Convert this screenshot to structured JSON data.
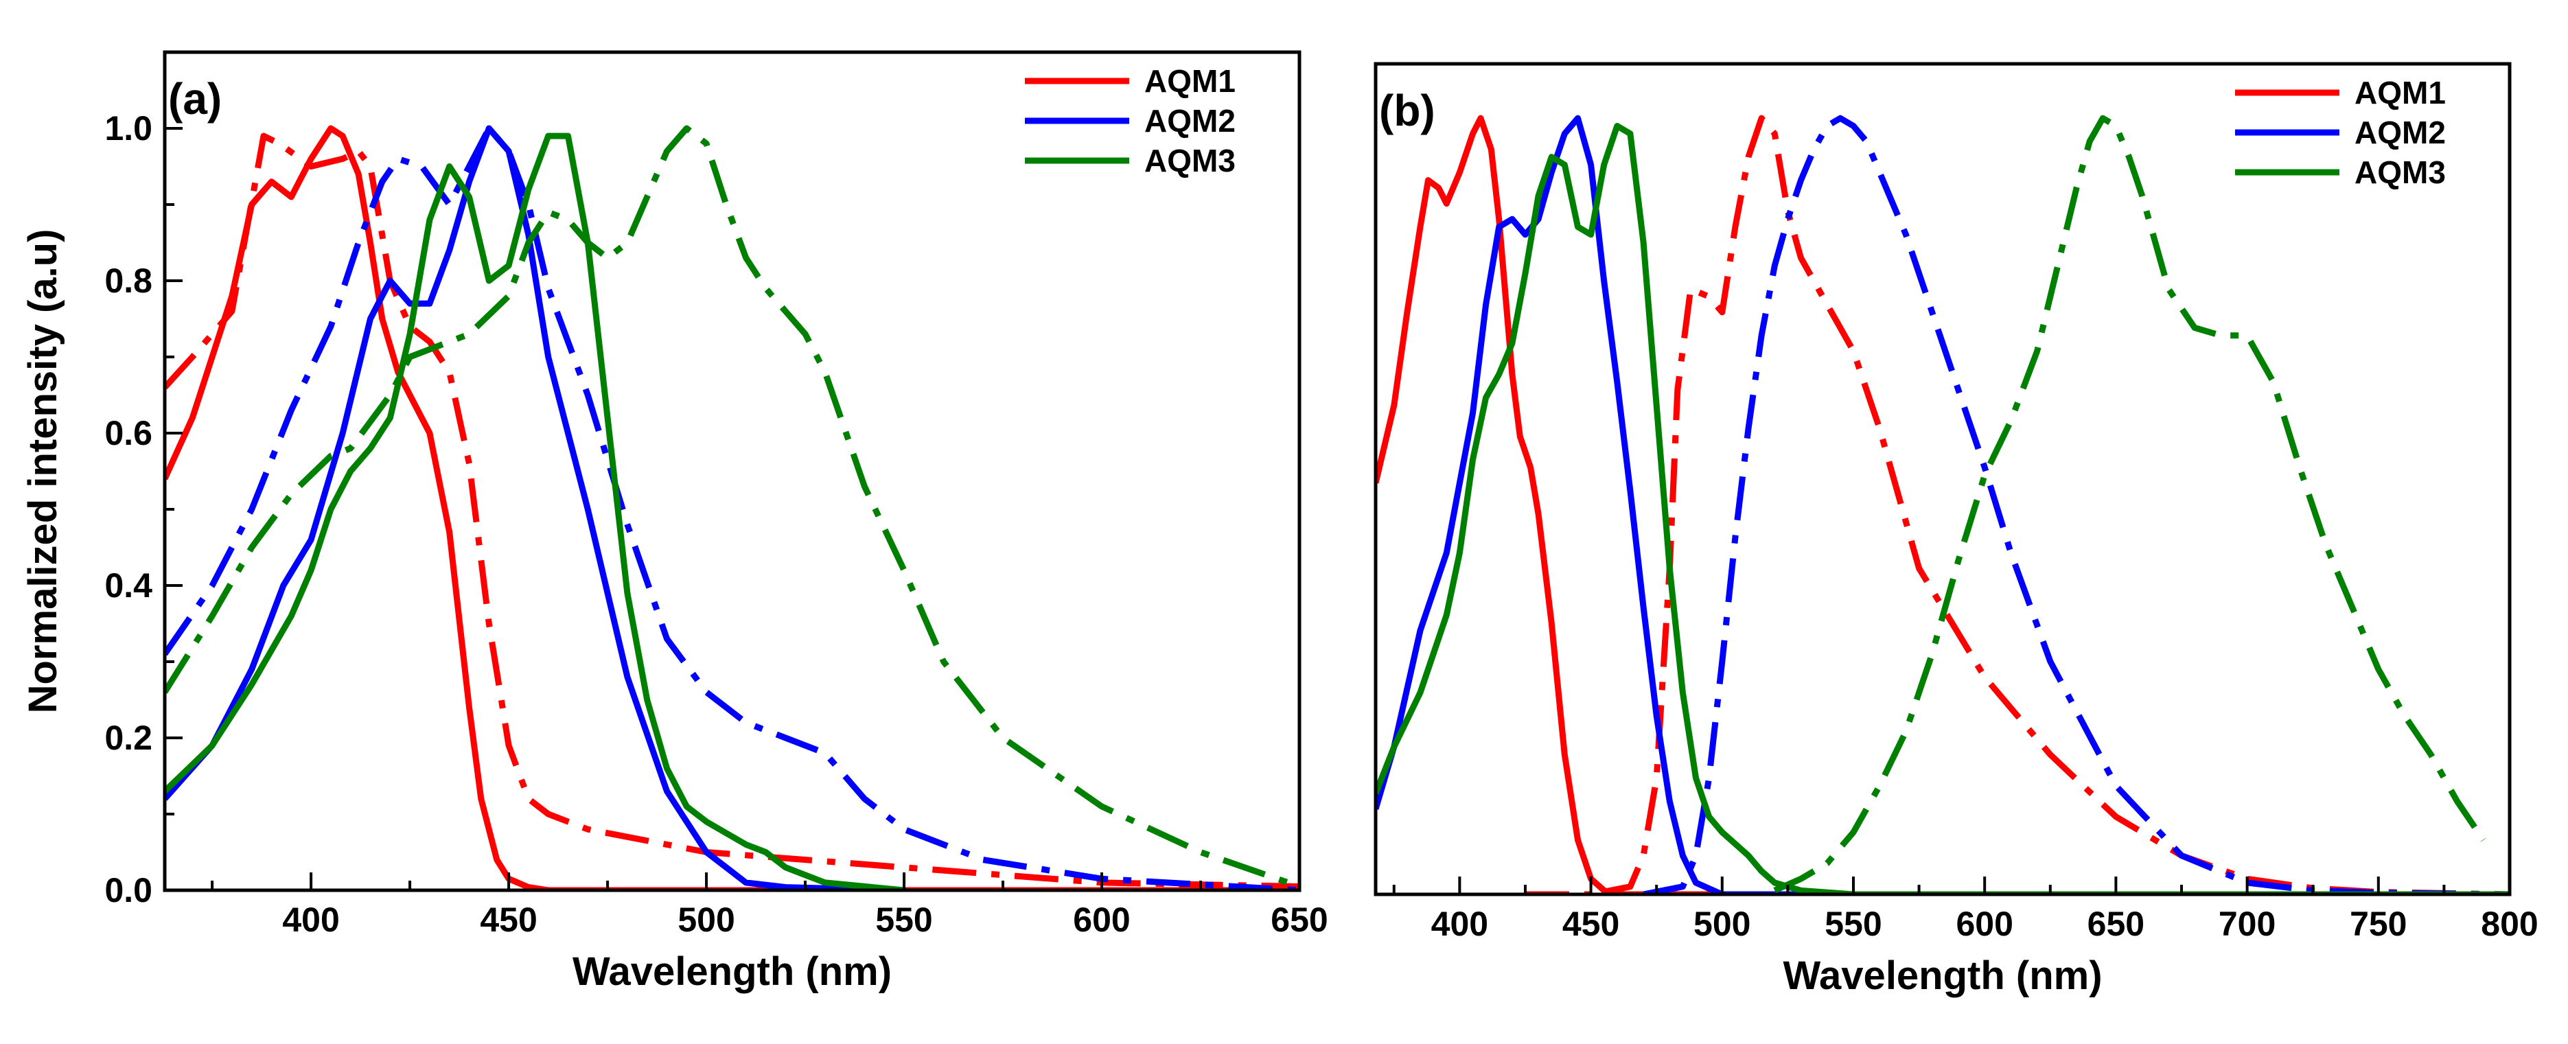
{
  "chart_data": [
    {
      "type": "line",
      "panel_label": "(a)",
      "xlabel": "Wavelength (nm)",
      "ylabel": "Normalized intensity (a.u)",
      "xlim": [
        363,
        650
      ],
      "ylim": [
        0,
        1.1
      ],
      "xticks": [
        400,
        450,
        500,
        550,
        600,
        650
      ],
      "xtick_labels": [
        "400",
        "450",
        "500",
        "550",
        "600",
        "650"
      ],
      "yticks": [
        0.0,
        0.2,
        0.4,
        0.6,
        0.8,
        1.0
      ],
      "ytick_labels": [
        "0.0",
        "0.2",
        "0.4",
        "0.6",
        "0.8",
        "1.0"
      ],
      "grid": false,
      "legend": {
        "position": "top-right",
        "entries": [
          {
            "label": "AQM1",
            "color": "#ff0000"
          },
          {
            "label": "AQM2",
            "color": "#0000ff"
          },
          {
            "label": "AQM3",
            "color": "#008000"
          }
        ]
      },
      "series": [
        {
          "name": "AQM1",
          "style": "solid",
          "color": "#ff0000",
          "x": [
            363,
            370,
            380,
            385,
            390,
            395,
            400,
            405,
            408,
            412,
            415,
            418,
            422,
            425,
            430,
            435,
            440,
            443,
            447,
            450,
            455,
            460,
            650
          ],
          "y": [
            0.54,
            0.62,
            0.78,
            0.9,
            0.93,
            0.91,
            0.96,
            1.0,
            0.99,
            0.94,
            0.85,
            0.75,
            0.68,
            0.65,
            0.6,
            0.47,
            0.24,
            0.12,
            0.04,
            0.015,
            0.004,
            0.0,
            0.0
          ]
        },
        {
          "name": "AQM1",
          "style": "dashdot",
          "color": "#ff0000",
          "x": [
            363,
            370,
            380,
            388,
            392,
            400,
            408,
            412,
            415,
            420,
            425,
            430,
            435,
            440,
            445,
            450,
            455,
            460,
            470,
            500,
            550,
            600,
            650
          ],
          "y": [
            0.66,
            0.7,
            0.76,
            0.99,
            0.98,
            0.95,
            0.96,
            0.97,
            0.95,
            0.8,
            0.74,
            0.72,
            0.68,
            0.56,
            0.35,
            0.19,
            0.12,
            0.1,
            0.08,
            0.05,
            0.03,
            0.01,
            0.005
          ]
        },
        {
          "name": "AQM2",
          "style": "solid",
          "color": "#0000ff",
          "x": [
            363,
            375,
            385,
            393,
            400,
            408,
            415,
            420,
            425,
            430,
            435,
            440,
            445,
            450,
            455,
            460,
            465,
            470,
            475,
            480,
            490,
            500,
            510,
            520,
            550
          ],
          "y": [
            0.12,
            0.19,
            0.29,
            0.4,
            0.46,
            0.6,
            0.75,
            0.8,
            0.77,
            0.77,
            0.84,
            0.93,
            1.0,
            0.97,
            0.86,
            0.7,
            0.6,
            0.5,
            0.39,
            0.28,
            0.13,
            0.05,
            0.01,
            0.004,
            0.0
          ]
        },
        {
          "name": "AQM2",
          "style": "dashdot",
          "color": "#0000ff",
          "x": [
            363,
            375,
            385,
            395,
            405,
            412,
            418,
            422,
            428,
            435,
            440,
            445,
            450,
            455,
            460,
            470,
            480,
            490,
            500,
            510,
            520,
            530,
            540,
            550,
            570,
            600,
            650
          ],
          "y": [
            0.31,
            0.4,
            0.5,
            0.63,
            0.74,
            0.85,
            0.93,
            0.96,
            0.95,
            0.9,
            0.95,
            1.0,
            0.97,
            0.9,
            0.79,
            0.65,
            0.48,
            0.33,
            0.26,
            0.22,
            0.2,
            0.18,
            0.12,
            0.08,
            0.04,
            0.015,
            0.0
          ]
        },
        {
          "name": "AQM3",
          "style": "solid",
          "color": "#008000",
          "x": [
            363,
            375,
            385,
            395,
            400,
            405,
            410,
            415,
            420,
            425,
            430,
            435,
            440,
            445,
            450,
            455,
            460,
            465,
            470,
            475,
            480,
            485,
            490,
            495,
            500,
            510,
            515,
            520,
            530,
            550
          ],
          "y": [
            0.13,
            0.19,
            0.27,
            0.36,
            0.42,
            0.5,
            0.55,
            0.58,
            0.62,
            0.73,
            0.88,
            0.95,
            0.91,
            0.8,
            0.82,
            0.92,
            0.99,
            0.99,
            0.85,
            0.62,
            0.39,
            0.25,
            0.16,
            0.11,
            0.09,
            0.06,
            0.05,
            0.03,
            0.01,
            0.0
          ]
        },
        {
          "name": "AQM3",
          "style": "dashdot",
          "color": "#008000",
          "x": [
            363,
            375,
            385,
            395,
            405,
            410,
            420,
            425,
            430,
            435,
            440,
            450,
            455,
            460,
            465,
            470,
            475,
            480,
            485,
            490,
            495,
            500,
            505,
            510,
            515,
            520,
            525,
            530,
            540,
            550,
            560,
            575,
            600,
            625,
            650
          ],
          "y": [
            0.26,
            0.36,
            0.45,
            0.52,
            0.57,
            0.58,
            0.65,
            0.7,
            0.71,
            0.72,
            0.73,
            0.78,
            0.85,
            0.89,
            0.88,
            0.85,
            0.83,
            0.85,
            0.91,
            0.97,
            1.0,
            0.98,
            0.9,
            0.83,
            0.79,
            0.76,
            0.73,
            0.68,
            0.53,
            0.42,
            0.3,
            0.2,
            0.11,
            0.05,
            0.005
          ]
        }
      ]
    },
    {
      "type": "line",
      "panel_label": "(b)",
      "xlabel": "Wavelength (nm)",
      "ylabel": "",
      "xlim": [
        368,
        800
      ],
      "ylim": [
        0,
        1.07
      ],
      "xticks": [
        400,
        450,
        500,
        550,
        600,
        650,
        700,
        750,
        800
      ],
      "xtick_labels": [
        "400",
        "450",
        "500",
        "550",
        "600",
        "650",
        "700",
        "750",
        "800"
      ],
      "yticks": [],
      "ytick_labels": [],
      "grid": false,
      "legend": {
        "position": "top-right",
        "entries": [
          {
            "label": "AQM1",
            "color": "#ff0000"
          },
          {
            "label": "AQM2",
            "color": "#0000ff"
          },
          {
            "label": "AQM3",
            "color": "#008000"
          }
        ]
      },
      "series": [
        {
          "name": "AQM1",
          "style": "solid",
          "color": "#ff0000",
          "x": [
            368,
            375,
            380,
            385,
            388,
            392,
            395,
            400,
            405,
            408,
            412,
            415,
            420,
            423,
            427,
            430,
            435,
            440,
            445,
            450,
            455,
            460,
            470,
            800
          ],
          "y": [
            0.53,
            0.63,
            0.75,
            0.86,
            0.92,
            0.91,
            0.89,
            0.93,
            0.98,
            1.0,
            0.96,
            0.87,
            0.67,
            0.59,
            0.55,
            0.49,
            0.35,
            0.18,
            0.07,
            0.02,
            0.005,
            0.0,
            0.0,
            0.0
          ]
        },
        {
          "name": "AQM1",
          "style": "dashdot",
          "color": "#ff0000",
          "x": [
            425,
            450,
            465,
            470,
            475,
            480,
            483,
            488,
            495,
            500,
            505,
            510,
            515,
            520,
            525,
            530,
            535,
            540,
            550,
            560,
            575,
            600,
            625,
            650,
            675,
            700,
            725,
            750,
            800
          ],
          "y": [
            0.0,
            0.0,
            0.01,
            0.05,
            0.15,
            0.42,
            0.65,
            0.78,
            0.77,
            0.75,
            0.86,
            0.95,
            1.0,
            0.98,
            0.88,
            0.82,
            0.79,
            0.76,
            0.7,
            0.6,
            0.42,
            0.28,
            0.18,
            0.1,
            0.05,
            0.02,
            0.008,
            0.003,
            0.0
          ]
        },
        {
          "name": "AQM2",
          "style": "solid",
          "color": "#0000ff",
          "x": [
            368,
            375,
            385,
            395,
            405,
            410,
            415,
            420,
            425,
            430,
            435,
            440,
            445,
            450,
            455,
            460,
            465,
            470,
            475,
            480,
            485,
            490,
            500,
            800
          ],
          "y": [
            0.11,
            0.19,
            0.34,
            0.44,
            0.62,
            0.76,
            0.86,
            0.87,
            0.85,
            0.87,
            0.93,
            0.98,
            1.0,
            0.94,
            0.79,
            0.66,
            0.52,
            0.37,
            0.23,
            0.12,
            0.05,
            0.015,
            0.0,
            0.0
          ]
        },
        {
          "name": "AQM2",
          "style": "dashdot",
          "color": "#0000ff",
          "x": [
            470,
            485,
            490,
            495,
            500,
            505,
            510,
            515,
            520,
            525,
            530,
            535,
            540,
            545,
            550,
            555,
            560,
            570,
            580,
            590,
            600,
            610,
            625,
            650,
            675,
            700,
            725,
            750,
            800
          ],
          "y": [
            0.0,
            0.01,
            0.05,
            0.15,
            0.3,
            0.46,
            0.6,
            0.72,
            0.81,
            0.87,
            0.92,
            0.96,
            0.99,
            1.0,
            0.99,
            0.97,
            0.93,
            0.85,
            0.75,
            0.65,
            0.55,
            0.44,
            0.3,
            0.14,
            0.05,
            0.015,
            0.005,
            0.002,
            0.0
          ]
        },
        {
          "name": "AQM3",
          "style": "solid",
          "color": "#008000",
          "x": [
            368,
            375,
            385,
            395,
            400,
            405,
            410,
            415,
            420,
            425,
            430,
            435,
            440,
            445,
            450,
            455,
            460,
            465,
            470,
            475,
            480,
            485,
            490,
            495,
            500,
            510,
            515,
            520,
            530,
            550,
            800
          ],
          "y": [
            0.13,
            0.19,
            0.26,
            0.36,
            0.44,
            0.56,
            0.64,
            0.67,
            0.71,
            0.8,
            0.9,
            0.95,
            0.94,
            0.86,
            0.85,
            0.94,
            0.99,
            0.98,
            0.84,
            0.63,
            0.42,
            0.26,
            0.15,
            0.1,
            0.08,
            0.05,
            0.03,
            0.015,
            0.005,
            0.0,
            0.0
          ]
        },
        {
          "name": "AQM3",
          "style": "dashdot",
          "color": "#008000",
          "x": [
            520,
            530,
            540,
            550,
            560,
            570,
            580,
            590,
            600,
            610,
            620,
            630,
            635,
            640,
            645,
            650,
            655,
            660,
            665,
            670,
            680,
            690,
            700,
            710,
            720,
            730,
            740,
            750,
            760,
            770,
            780,
            790
          ],
          "y": [
            0.005,
            0.02,
            0.04,
            0.08,
            0.14,
            0.21,
            0.31,
            0.43,
            0.54,
            0.61,
            0.7,
            0.84,
            0.91,
            0.97,
            1.0,
            0.99,
            0.95,
            0.9,
            0.84,
            0.78,
            0.73,
            0.72,
            0.72,
            0.66,
            0.55,
            0.45,
            0.37,
            0.29,
            0.23,
            0.18,
            0.12,
            0.07
          ]
        }
      ]
    }
  ]
}
